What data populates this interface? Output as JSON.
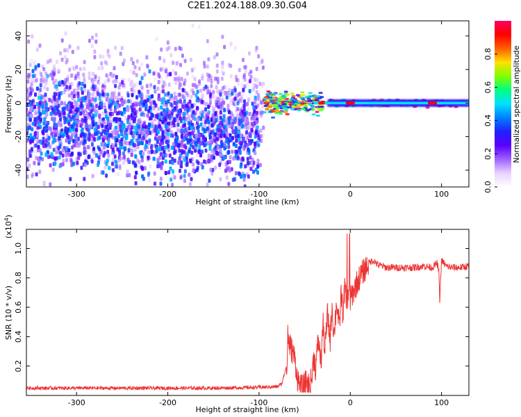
{
  "title": "C2E1.2024.188.09.30.G04",
  "chart_data": [
    {
      "type": "heatmap",
      "xlabel": "Height of straight line (km)",
      "ylabel": "Frequency (Hz)",
      "xlim": [
        -355,
        130
      ],
      "ylim": [
        -50,
        49
      ],
      "xticks": [
        -300,
        -200,
        -100,
        0,
        100
      ],
      "yticks": [
        -40,
        -20,
        0,
        20,
        40
      ],
      "colorbar": {
        "label": "Normalized spectral amplitude",
        "range": [
          0.0,
          1.0
        ],
        "ticks": [
          0.0,
          0.2,
          0.4,
          0.6,
          0.8
        ],
        "colors": [
          "#ffffff",
          "#e9d2ff",
          "#a060ff",
          "#5a00ff",
          "#2020ff",
          "#0080ff",
          "#00e0ff",
          "#00ff80",
          "#80ff00",
          "#ffe000",
          "#ff6000",
          "#ff0000",
          "#ff0060"
        ]
      },
      "regions": [
        {
          "desc": "diffuse scatter",
          "x": [
            -355,
            -95
          ],
          "freq_center": -5,
          "freq_spread": 35,
          "amplitude": 0.15
        },
        {
          "desc": "dense scatter",
          "x": [
            -355,
            -100
          ],
          "freq_center": -10,
          "freq_spread": 25,
          "amplitude": 0.3
        },
        {
          "desc": "narrowing signal",
          "x": [
            -95,
            -30
          ],
          "freq_center": 0,
          "freq_spread": 6,
          "amplitude": 0.55
        },
        {
          "desc": "stable carrier",
          "x": [
            -30,
            130
          ],
          "freq_center": 0,
          "freq_spread": 2,
          "amplitude": 0.85
        }
      ]
    },
    {
      "type": "line",
      "xlabel": "Height of straight line (km)",
      "ylabel": "SNR (10 * v/v)",
      "y_multiplier": "(x10",
      "y_multiplier_exp": "4",
      "y_multiplier_close": ")",
      "xlim": [
        -355,
        130
      ],
      "ylim": [
        0.0,
        1.13
      ],
      "xticks": [
        -300,
        -200,
        -100,
        0,
        100
      ],
      "yticks": [
        0.2,
        0.4,
        0.6,
        0.8,
        1.0
      ],
      "color": "#ee3333",
      "series": [
        {
          "x": [
            -355,
            -300,
            -250,
            -200,
            -150,
            -100,
            -80,
            -75,
            -70,
            -68,
            -65,
            -62,
            -60,
            -58,
            -55,
            -52,
            -50,
            -48,
            -45,
            -42,
            -40,
            -38,
            -35,
            -32,
            -30,
            -28,
            -25,
            -22,
            -20,
            -18,
            -15,
            -12,
            -10,
            -8,
            -6,
            -4,
            -2,
            0,
            3,
            6,
            10,
            15,
            20,
            25,
            30,
            40,
            50,
            60,
            70,
            80,
            90,
            95,
            97,
            98,
            100,
            105,
            110,
            120,
            130
          ],
          "y": [
            0.05,
            0.05,
            0.05,
            0.05,
            0.05,
            0.055,
            0.06,
            0.08,
            0.2,
            0.38,
            0.32,
            0.28,
            0.22,
            0.12,
            0.06,
            0.05,
            0.07,
            0.1,
            0.06,
            0.12,
            0.28,
            0.18,
            0.38,
            0.22,
            0.5,
            0.3,
            0.55,
            0.38,
            0.62,
            0.4,
            0.64,
            0.45,
            0.7,
            0.55,
            0.75,
            0.6,
            0.72,
            0.65,
            0.7,
            0.75,
            0.8,
            0.85,
            0.9,
            0.92,
            0.89,
            0.87,
            0.87,
            0.87,
            0.87,
            0.88,
            0.87,
            0.9,
            0.85,
            0.65,
            0.92,
            0.88,
            0.87,
            0.87,
            0.88
          ]
        }
      ]
    }
  ]
}
